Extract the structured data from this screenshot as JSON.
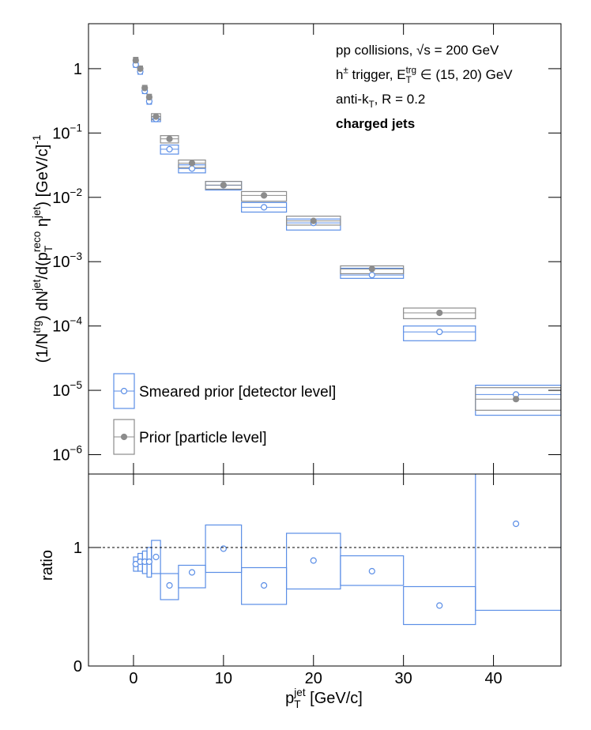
{
  "chart_data": {
    "type": "scatter",
    "x_label": [
      {
        "t": "p"
      },
      {
        "t": "T",
        "k": "sub"
      },
      {
        "t": "jet",
        "k": "sup",
        "stack": true
      },
      {
        "t": " [GeV/c]"
      }
    ],
    "xlim": [
      -5,
      47.5
    ],
    "xticks": [
      0,
      10,
      20,
      30,
      40
    ],
    "x": [
      0.25,
      0.75,
      1.25,
      1.75,
      2.5,
      4,
      6.5,
      10,
      14.5,
      20,
      26.5,
      34,
      42.5
    ],
    "bins": [
      0,
      0.5,
      1,
      1.5,
      2,
      3,
      5,
      8,
      12,
      17,
      23,
      30,
      38,
      47.5
    ],
    "panels": [
      {
        "yscale": "log",
        "ylim": [
          5e-07,
          5
        ],
        "yticks": [
          {
            "value": 1e-06,
            "label": [
              {
                "t": "10"
              },
              {
                "t": "−6",
                "k": "sup"
              }
            ]
          },
          {
            "value": 1e-05,
            "label": [
              {
                "t": "10"
              },
              {
                "t": "−5",
                "k": "sup"
              }
            ]
          },
          {
            "value": 0.0001,
            "label": [
              {
                "t": "10"
              },
              {
                "t": "−4",
                "k": "sup"
              }
            ]
          },
          {
            "value": 0.001,
            "label": [
              {
                "t": "10"
              },
              {
                "t": "−3",
                "k": "sup"
              }
            ]
          },
          {
            "value": 0.01,
            "label": [
              {
                "t": "10"
              },
              {
                "t": "−2",
                "k": "sup"
              }
            ]
          },
          {
            "value": 0.1,
            "label": [
              {
                "t": "10"
              },
              {
                "t": "−1",
                "k": "sup"
              }
            ]
          },
          1
        ],
        "y_label": [
          {
            "t": "(1/N"
          },
          {
            "t": "trg",
            "k": "sup"
          },
          {
            "t": ") dN"
          },
          {
            "t": "jet",
            "k": "sup"
          },
          {
            "t": "/d(p"
          },
          {
            "t": "T",
            "k": "sub"
          },
          {
            "t": "reco",
            "k": "sup",
            "stack": true
          },
          {
            "t": " η"
          },
          {
            "t": "jet",
            "k": "sup"
          },
          {
            "t": ") [GeV/c]"
          },
          {
            "t": "-1",
            "k": "sup"
          }
        ],
        "annotations": [
          [
            {
              "t": "pp collisions, √s = 200 GeV"
            }
          ],
          [
            {
              "t": "h"
            },
            {
              "t": "±",
              "k": "sup"
            },
            {
              "t": " trigger, E"
            },
            {
              "t": "T",
              "k": "sub"
            },
            {
              "t": "trg",
              "k": "sup",
              "stack": true
            },
            {
              "t": " ∈ (15, 20) GeV"
            }
          ],
          [
            {
              "t": "anti-k"
            },
            {
              "t": "T",
              "k": "sub"
            },
            {
              "t": ", R = 0.2"
            }
          ],
          [
            {
              "t": "charged jets",
              "k": "bold"
            }
          ]
        ],
        "legend": "lower left",
        "bin_lines": true,
        "series": [
          {
            "name": "Smeared prior [detector level]",
            "color": "#5b8ee6",
            "marker": "open",
            "values": [
              1.15,
              0.9,
              0.45,
              0.31,
              0.165,
              0.056,
              0.028,
              0.0154,
              0.007,
              0.004,
              0.00062,
              8.1e-05,
              8.6e-06
            ],
            "box_low": [
              1.05,
              0.82,
              0.41,
              0.28,
              0.15,
              0.047,
              0.024,
              0.013,
              0.0059,
              0.0031,
              0.00055,
              5.9e-05,
              4.1e-06
            ],
            "box_high": [
              1.25,
              0.98,
              0.49,
              0.34,
              0.18,
              0.065,
              0.032,
              0.0177,
              0.0083,
              0.0046,
              0.00079,
              0.0001,
              1.2e-05
            ]
          },
          {
            "name": "Prior [particle level]",
            "color": "#8c8c8c",
            "marker": "filled",
            "values": [
              1.35,
              1.0,
              0.5,
              0.36,
              0.18,
              0.081,
              0.034,
              0.0155,
              0.0107,
              0.0043,
              0.00077,
              0.00016,
              7.3e-06
            ],
            "box_low": [
              1.22,
              0.9,
              0.45,
              0.32,
              0.16,
              0.07,
              0.029,
              0.0134,
              0.0087,
              0.0037,
              0.00065,
              0.00013,
              4.9e-06
            ],
            "box_high": [
              1.5,
              1.1,
              0.55,
              0.4,
              0.2,
              0.091,
              0.038,
              0.0177,
              0.0123,
              0.0051,
              0.00086,
              0.00019,
              1.1e-05
            ]
          }
        ]
      },
      {
        "yscale": "linear",
        "ylim": [
          0,
          1.62
        ],
        "yticks": [
          0,
          1
        ],
        "y_label": "ratio",
        "reference_line": 1,
        "series": [
          {
            "color": "#5b8ee6",
            "marker": "open",
            "values": [
              0.86,
              0.88,
              0.88,
              0.88,
              0.92,
              0.68,
              0.79,
              0.99,
              0.68,
              0.89,
              0.8,
              0.51,
              1.2
            ],
            "box_low": [
              0.8,
              0.8,
              0.78,
              0.75,
              0.78,
              0.56,
              0.66,
              0.79,
              0.52,
              0.65,
              0.68,
              0.35,
              0.47
            ],
            "box_high": [
              0.92,
              0.95,
              0.97,
              1.0,
              1.06,
              0.78,
              0.85,
              1.19,
              0.83,
              1.12,
              0.93,
              0.67,
              1.9
            ]
          }
        ]
      }
    ]
  }
}
